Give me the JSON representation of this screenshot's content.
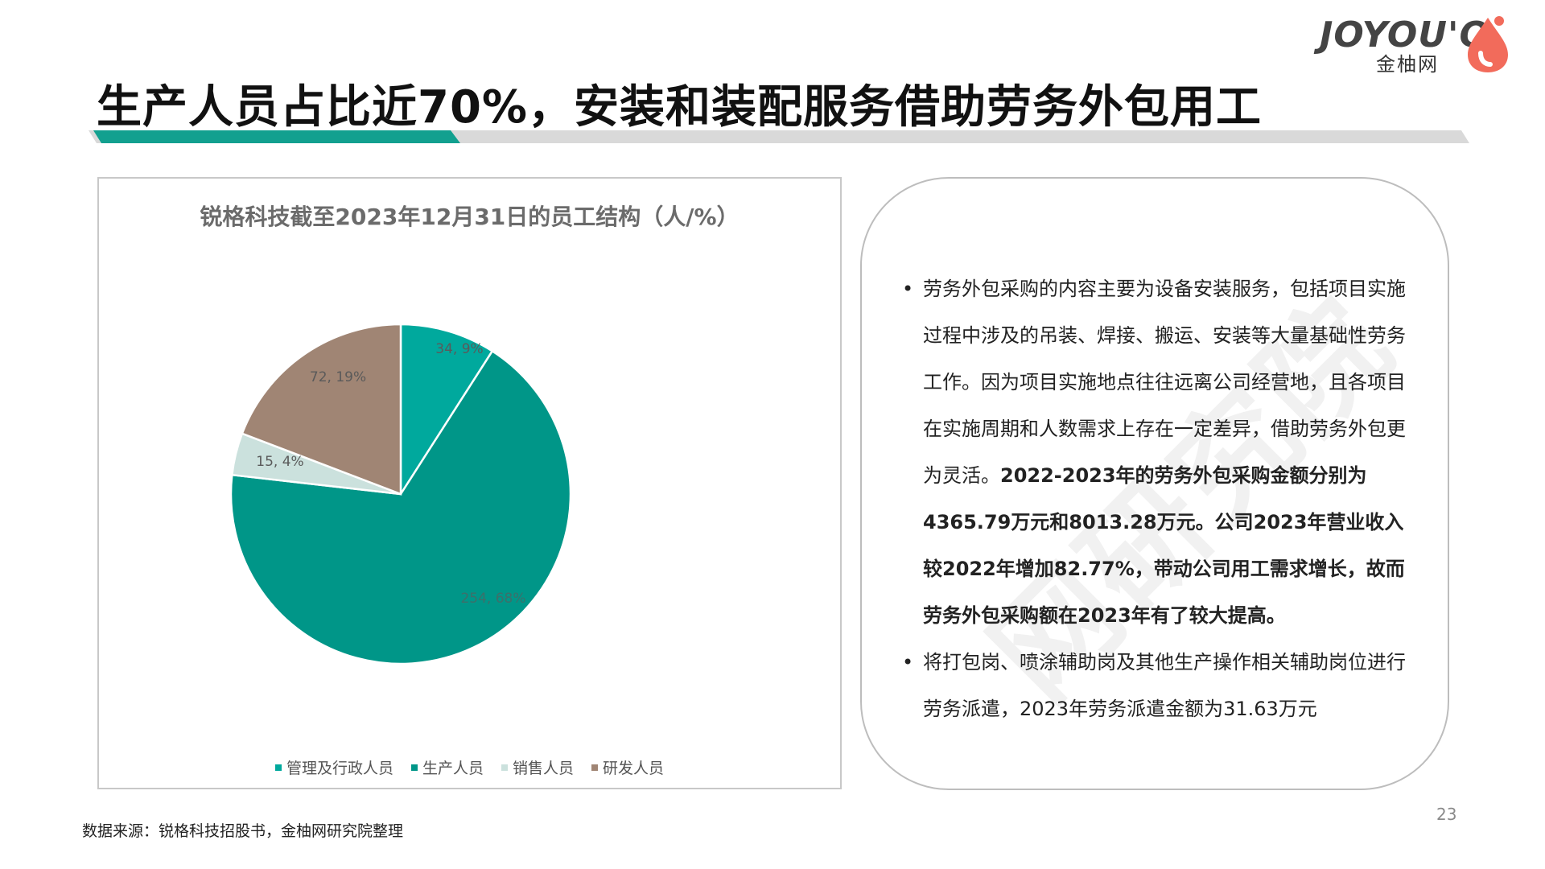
{
  "logo": {
    "wordmark": "JOYOU'O",
    "cn_name": "金柚网"
  },
  "page_title": "生产人员占比近70%，安装和装配服务借助劳务外包用工",
  "colors": {
    "teal_dark": "#009688",
    "teal_bright": "#00A99D",
    "mint": "#CBE1DD",
    "brown": "#A08574",
    "accent_logo": "#F26B5B",
    "rule_gray": "#D9D9D9"
  },
  "chart_data": {
    "type": "pie",
    "title": "锐格科技截至2023年12月31日的员工结构（人/%）",
    "categories": [
      "管理及行政人员",
      "生产人员",
      "销售人员",
      "研发人员"
    ],
    "values": [
      34,
      254,
      15,
      72
    ],
    "percent": [
      9,
      68,
      4,
      19
    ],
    "data_labels": [
      "34, 9%",
      "254, 68%",
      "15, 4%",
      "72, 19%"
    ],
    "colors": [
      "#00A99D",
      "#009688",
      "#CBE1DD",
      "#A08574"
    ],
    "legend_position": "bottom"
  },
  "bullets": [
    {
      "parts": [
        {
          "text": "劳务外包采购的内容主要为设备安装服务，包括项目实施过程中涉及的吊装、焊接、搬运、安装等大量基础性劳务工作。因为项目实施地点往往远离公司经营地，且各项目在实施周期和人数需求上存在一定差异，借助劳务外包更为灵活。",
          "bold": false
        },
        {
          "text": "2022-2023年的劳务外包采购金额分别为4365.79万元和8013.28万元。公司2023年营业收入较2022年增加82.77%，带动公司用工需求增长，故而劳务外包采购额在2023年有了较大提高。",
          "bold": true
        }
      ]
    },
    {
      "parts": [
        {
          "text": "将打包岗、喷涂辅助岗及其他生产操作相关辅助岗位进行劳务派遣，2023年劳务派遣金额为31.63万元",
          "bold": false
        }
      ]
    }
  ],
  "bullet_symbol": "•",
  "watermark": "网研究院",
  "page_number": "23",
  "source": "数据来源：锐格科技招股书，金柚网研究院整理"
}
